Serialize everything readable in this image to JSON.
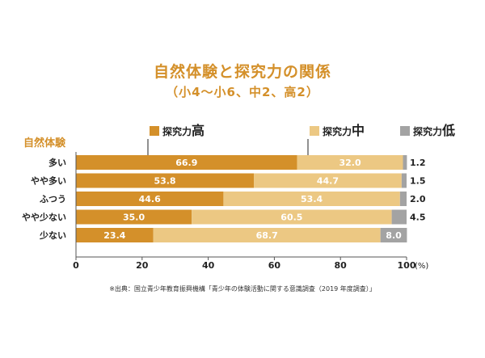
{
  "chart_data": {
    "type": "bar",
    "stacked": true,
    "orientation": "horizontal",
    "title": "自然体験と探究力の関係",
    "subtitle": "（小4〜小6、中2、高2）",
    "ylabel": "自然体験",
    "xlabel": "(%)",
    "xlim": [
      0,
      100
    ],
    "x_ticks": [
      "0",
      "20",
      "40",
      "60",
      "80",
      "100"
    ],
    "categories": [
      "多い",
      "やや多い",
      "ふつう",
      "やや少ない",
      "少ない"
    ],
    "series": [
      {
        "name": "探究力高",
        "legend_prefix": "探究力",
        "legend_suffix": "高",
        "color": "#d4902a",
        "values": [
          66.9,
          53.8,
          44.6,
          35.0,
          23.4
        ]
      },
      {
        "name": "探究力中",
        "legend_prefix": "探究力",
        "legend_suffix": "中",
        "color": "#ecc883",
        "values": [
          32.0,
          44.7,
          53.4,
          60.5,
          68.7
        ]
      },
      {
        "name": "探究力低",
        "legend_prefix": "探究力",
        "legend_suffix": "低",
        "color": "#a3a3a3",
        "values": [
          1.2,
          1.5,
          2.0,
          4.5,
          8.0
        ]
      }
    ],
    "value_labels": [
      [
        "66.9",
        "53.8",
        "44.6",
        "35.0",
        "23.4"
      ],
      [
        "32.0",
        "44.7",
        "53.4",
        "60.5",
        "68.7"
      ],
      [
        "1.2",
        "1.5",
        "2.0",
        "4.5",
        "8.0"
      ]
    ],
    "source": "※出典：国立青少年教育振興機構「青少年の体験活動に関する意識調査（2019 年度調査）」"
  }
}
